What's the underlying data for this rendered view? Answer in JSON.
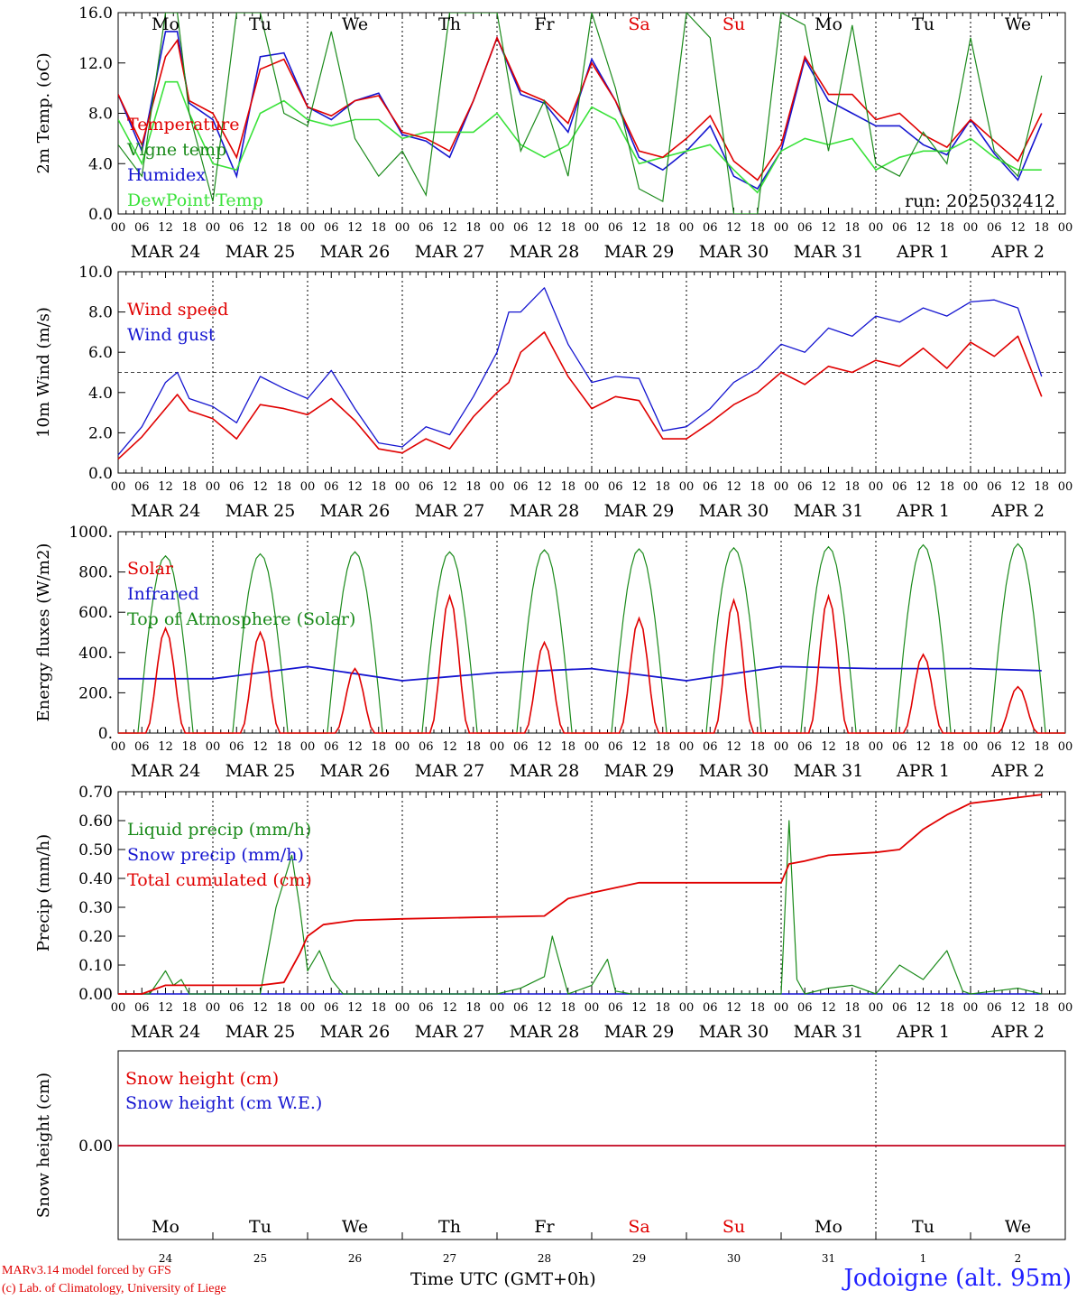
{
  "run_label": "run: 2025032412",
  "credits": [
    "MARv3.14 model forced by GFS",
    "(c) Lab. of Climatology, University of Liege"
  ],
  "time_axis_label": "Time UTC (GMT+0h)",
  "station": "Jodoigne (alt. 95m)",
  "colors": {
    "red": "#e00000",
    "green": "#1a8a1a",
    "blue": "#1515d0",
    "light_green": "#3ae23a",
    "weekend": "#e00000"
  },
  "days": [
    "Mo",
    "Tu",
    "We",
    "Th",
    "Fr",
    "Sa",
    "Su",
    "Mo",
    "Tu",
    "We"
  ],
  "weekend_days": [
    5,
    6
  ],
  "date_labels": [
    "MAR 24",
    "MAR 25",
    "MAR 26",
    "MAR 27",
    "MAR 28",
    "MAR 29",
    "MAR 30",
    "MAR 31",
    "APR  1",
    "APR  2"
  ],
  "hour_ticks": [
    "00",
    "06",
    "12",
    "18"
  ],
  "end_hour_tick": "00",
  "day_numbers": [
    "24",
    "25",
    "26",
    "27",
    "28",
    "29",
    "30",
    "31",
    "1",
    "2"
  ],
  "chart_data": [
    {
      "type": "line",
      "ylabel": "2m Temp. (oC)",
      "ylim": [
        0,
        16
      ],
      "yticks": [
        "0.0",
        "4.0",
        "8.0",
        "12.0",
        "16.0"
      ],
      "x_unit": "hours since 2025-03-24 00 UTC",
      "grid": "vertical dashed day separators",
      "legend_placement": "left",
      "series": [
        {
          "name": "Temperature",
          "color": "#e00000",
          "x": [
            0,
            6,
            12,
            15,
            18,
            24,
            30,
            36,
            42,
            48,
            54,
            60,
            66,
            72,
            78,
            84,
            90,
            96,
            102,
            108,
            114,
            120,
            126,
            132,
            138,
            144,
            150,
            156,
            162,
            168,
            174,
            180,
            186,
            192,
            198,
            204,
            210,
            216,
            222,
            228,
            234
          ],
          "y": [
            9.5,
            5.5,
            12.5,
            13.8,
            9.0,
            8.0,
            4.5,
            11.5,
            12.3,
            8.5,
            7.8,
            9.0,
            9.4,
            6.5,
            6.0,
            5.0,
            9.0,
            14.0,
            9.8,
            9.0,
            7.2,
            12.0,
            9.0,
            5.0,
            4.5,
            6.0,
            7.8,
            4.2,
            2.7,
            5.5,
            12.5,
            9.5,
            9.5,
            7.5,
            8.0,
            6.3,
            5.3,
            7.5,
            5.8,
            4.2,
            8.0
          ]
        },
        {
          "name": "Vigne temp",
          "color": "#1a8a1a",
          "x": [
            0,
            6,
            12,
            15,
            18,
            24,
            30,
            36,
            42,
            48,
            54,
            60,
            66,
            72,
            78,
            84,
            90,
            96,
            102,
            108,
            114,
            120,
            126,
            132,
            138,
            144,
            150,
            156,
            162,
            168,
            174,
            180,
            186,
            192,
            198,
            204,
            210,
            216,
            222,
            228,
            234
          ],
          "y": [
            5.5,
            3.0,
            16.0,
            16.0,
            8.0,
            1.0,
            16.0,
            16.0,
            8.0,
            7.0,
            14.5,
            6.0,
            3.0,
            5.0,
            1.5,
            16.0,
            16.0,
            16.0,
            5.0,
            9.0,
            3.0,
            16.0,
            10.0,
            2.0,
            1.0,
            16.0,
            14.0,
            0.0,
            0.0,
            16.0,
            15.0,
            5.0,
            15.0,
            4.0,
            3.0,
            6.5,
            4.0,
            14.0,
            5.0,
            3.0,
            11.0
          ]
        },
        {
          "name": "Humidex",
          "color": "#1515d0",
          "x": [
            0,
            6,
            12,
            15,
            18,
            24,
            30,
            36,
            42,
            48,
            54,
            60,
            66,
            72,
            78,
            84,
            90,
            96,
            102,
            108,
            114,
            120,
            126,
            132,
            138,
            144,
            150,
            156,
            162,
            168,
            174,
            180,
            186,
            192,
            198,
            204,
            210,
            216,
            222,
            228,
            234
          ],
          "y": [
            9.5,
            5.0,
            14.5,
            14.5,
            8.8,
            7.5,
            3.0,
            12.5,
            12.8,
            8.5,
            7.5,
            9.0,
            9.6,
            6.3,
            5.8,
            4.5,
            9.0,
            14.0,
            9.5,
            8.8,
            6.5,
            12.3,
            9.0,
            4.5,
            3.5,
            5.0,
            7.0,
            3.0,
            2.0,
            5.0,
            12.3,
            9.0,
            8.0,
            7.0,
            7.0,
            5.5,
            4.7,
            7.5,
            4.8,
            2.7,
            7.2
          ]
        },
        {
          "name": "DewPoint Temp",
          "color": "#3ae23a",
          "x": [
            0,
            6,
            12,
            15,
            18,
            24,
            30,
            36,
            42,
            48,
            54,
            60,
            66,
            72,
            78,
            84,
            90,
            96,
            102,
            108,
            114,
            120,
            126,
            132,
            138,
            144,
            150,
            156,
            162,
            168,
            174,
            180,
            186,
            192,
            198,
            204,
            210,
            216,
            222,
            228,
            234
          ],
          "y": [
            7.5,
            4.0,
            10.5,
            10.5,
            8.0,
            4.0,
            3.5,
            8.0,
            9.0,
            7.5,
            7.0,
            7.5,
            7.5,
            6.0,
            6.5,
            6.5,
            6.5,
            8.0,
            5.5,
            4.5,
            5.5,
            8.5,
            7.5,
            4.0,
            4.5,
            5.0,
            5.5,
            3.5,
            1.7,
            5.0,
            6.0,
            5.5,
            6.0,
            3.5,
            4.5,
            5.0,
            5.0,
            6.0,
            4.5,
            3.5,
            3.5
          ]
        }
      ]
    },
    {
      "type": "line",
      "ylabel": "10m Wind (m/s)",
      "ylim": [
        0,
        10
      ],
      "yticks": [
        "0.0",
        "2.0",
        "4.0",
        "6.0",
        "8.0",
        "10.0"
      ],
      "reference_line": 5,
      "legend_placement": "left",
      "series": [
        {
          "name": "Wind speed",
          "color": "#e00000",
          "x": [
            0,
            6,
            12,
            15,
            18,
            24,
            30,
            36,
            42,
            48,
            54,
            60,
            66,
            72,
            78,
            84,
            90,
            96,
            99,
            102,
            108,
            114,
            120,
            126,
            132,
            138,
            144,
            150,
            156,
            162,
            168,
            174,
            180,
            186,
            192,
            198,
            204,
            210,
            216,
            222,
            228,
            234
          ],
          "y": [
            0.7,
            1.8,
            3.2,
            3.9,
            3.1,
            2.7,
            1.7,
            3.4,
            3.2,
            2.9,
            3.7,
            2.6,
            1.2,
            1.0,
            1.7,
            1.2,
            2.8,
            4.0,
            4.5,
            6.0,
            7.0,
            4.8,
            3.2,
            3.8,
            3.6,
            1.7,
            1.7,
            2.5,
            3.4,
            4.0,
            5.0,
            4.4,
            5.3,
            5.0,
            5.6,
            5.3,
            6.2,
            5.2,
            6.5,
            5.8,
            6.8,
            3.8
          ]
        },
        {
          "name": "Wind gust",
          "color": "#1515d0",
          "x": [
            0,
            6,
            12,
            15,
            18,
            24,
            30,
            36,
            42,
            48,
            54,
            60,
            66,
            72,
            78,
            84,
            90,
            96,
            99,
            102,
            108,
            114,
            120,
            126,
            132,
            138,
            144,
            150,
            156,
            162,
            168,
            174,
            180,
            186,
            192,
            198,
            204,
            210,
            216,
            222,
            228,
            234
          ],
          "y": [
            0.9,
            2.3,
            4.5,
            5.0,
            3.7,
            3.3,
            2.5,
            4.8,
            4.2,
            3.7,
            5.1,
            3.2,
            1.5,
            1.3,
            2.3,
            1.9,
            3.8,
            6.0,
            8.0,
            8.0,
            9.2,
            6.4,
            4.5,
            4.8,
            4.7,
            2.1,
            2.3,
            3.2,
            4.5,
            5.2,
            6.4,
            6.0,
            7.2,
            6.8,
            7.8,
            7.5,
            8.2,
            7.8,
            8.5,
            8.6,
            8.2,
            4.8
          ]
        }
      ]
    },
    {
      "type": "line",
      "ylabel": "Energy fluxes (W/m2)",
      "ylim": [
        0,
        1000
      ],
      "yticks": [
        "0.",
        "200.",
        "400.",
        "600.",
        "800.",
        "1000."
      ],
      "legend_placement": "left",
      "series": [
        {
          "name": "Solar",
          "color": "#e00000",
          "peaks": [
            520,
            500,
            320,
            680,
            450,
            570,
            660,
            680,
            390,
            230
          ]
        },
        {
          "name": "Infrared",
          "color": "#1515d0",
          "x": [
            0,
            24,
            48,
            72,
            96,
            120,
            144,
            168,
            192,
            216,
            234
          ],
          "y": [
            270,
            270,
            330,
            260,
            300,
            320,
            260,
            330,
            320,
            320,
            310
          ]
        },
        {
          "name": "Top of Atmosphere (Solar)",
          "color": "#1a8a1a",
          "peaks": [
            880,
            890,
            900,
            900,
            910,
            915,
            920,
            925,
            935,
            940
          ]
        }
      ]
    },
    {
      "type": "line",
      "ylabel": "Precip (mm/h)",
      "ylim": [
        0,
        0.7
      ],
      "yticks": [
        "0.00",
        "0.10",
        "0.20",
        "0.30",
        "0.40",
        "0.50",
        "0.60",
        "0.70"
      ],
      "legend_placement": "left",
      "series": [
        {
          "name": "Liquid precip (mm/h)",
          "color": "#1a8a1a",
          "x": [
            0,
            8,
            12,
            14,
            16,
            18,
            24,
            36,
            40,
            44,
            46,
            48,
            51,
            54,
            57,
            60,
            72,
            96,
            102,
            108,
            110,
            114,
            120,
            124,
            126,
            130,
            144,
            168,
            170,
            172,
            174,
            180,
            186,
            192,
            198,
            204,
            210,
            214,
            216,
            222,
            228,
            234
          ],
          "y": [
            0,
            0,
            0.08,
            0.03,
            0.05,
            0,
            0,
            0,
            0.3,
            0.48,
            0.3,
            0.08,
            0.15,
            0.05,
            0,
            0,
            0,
            0,
            0.02,
            0.06,
            0.2,
            0,
            0.03,
            0.12,
            0.01,
            0,
            0,
            0,
            0.6,
            0.05,
            0,
            0.02,
            0.03,
            0,
            0.1,
            0.05,
            0.15,
            0.01,
            0,
            0.01,
            0.02,
            0
          ]
        },
        {
          "name": "Snow precip (mm/h)",
          "color": "#1515d0",
          "x": [
            0,
            234
          ],
          "y": [
            0,
            0
          ]
        },
        {
          "name": "Total cumulated (cm)",
          "color": "#e00000",
          "x": [
            0,
            6,
            12,
            24,
            36,
            42,
            46,
            48,
            52,
            60,
            72,
            90,
            108,
            114,
            120,
            132,
            144,
            168,
            170,
            174,
            180,
            192,
            198,
            204,
            210,
            216,
            234
          ],
          "y": [
            0,
            0,
            0.03,
            0.03,
            0.03,
            0.04,
            0.14,
            0.2,
            0.24,
            0.255,
            0.26,
            0.265,
            0.27,
            0.33,
            0.35,
            0.385,
            0.385,
            0.385,
            0.45,
            0.46,
            0.48,
            0.49,
            0.5,
            0.57,
            0.62,
            0.66,
            0.69
          ]
        }
      ]
    },
    {
      "type": "line",
      "ylabel": "Snow height (cm)",
      "yticks": [
        "0.00"
      ],
      "legend_placement": "left",
      "series": [
        {
          "name": "Snow height (cm)",
          "color": "#e00000",
          "x": [
            0,
            234
          ],
          "y": [
            0,
            0
          ]
        },
        {
          "name": "Snow height (cm W.E.)",
          "color": "#1515d0",
          "x": [
            0,
            234
          ],
          "y": [
            0,
            0
          ]
        }
      ]
    }
  ]
}
